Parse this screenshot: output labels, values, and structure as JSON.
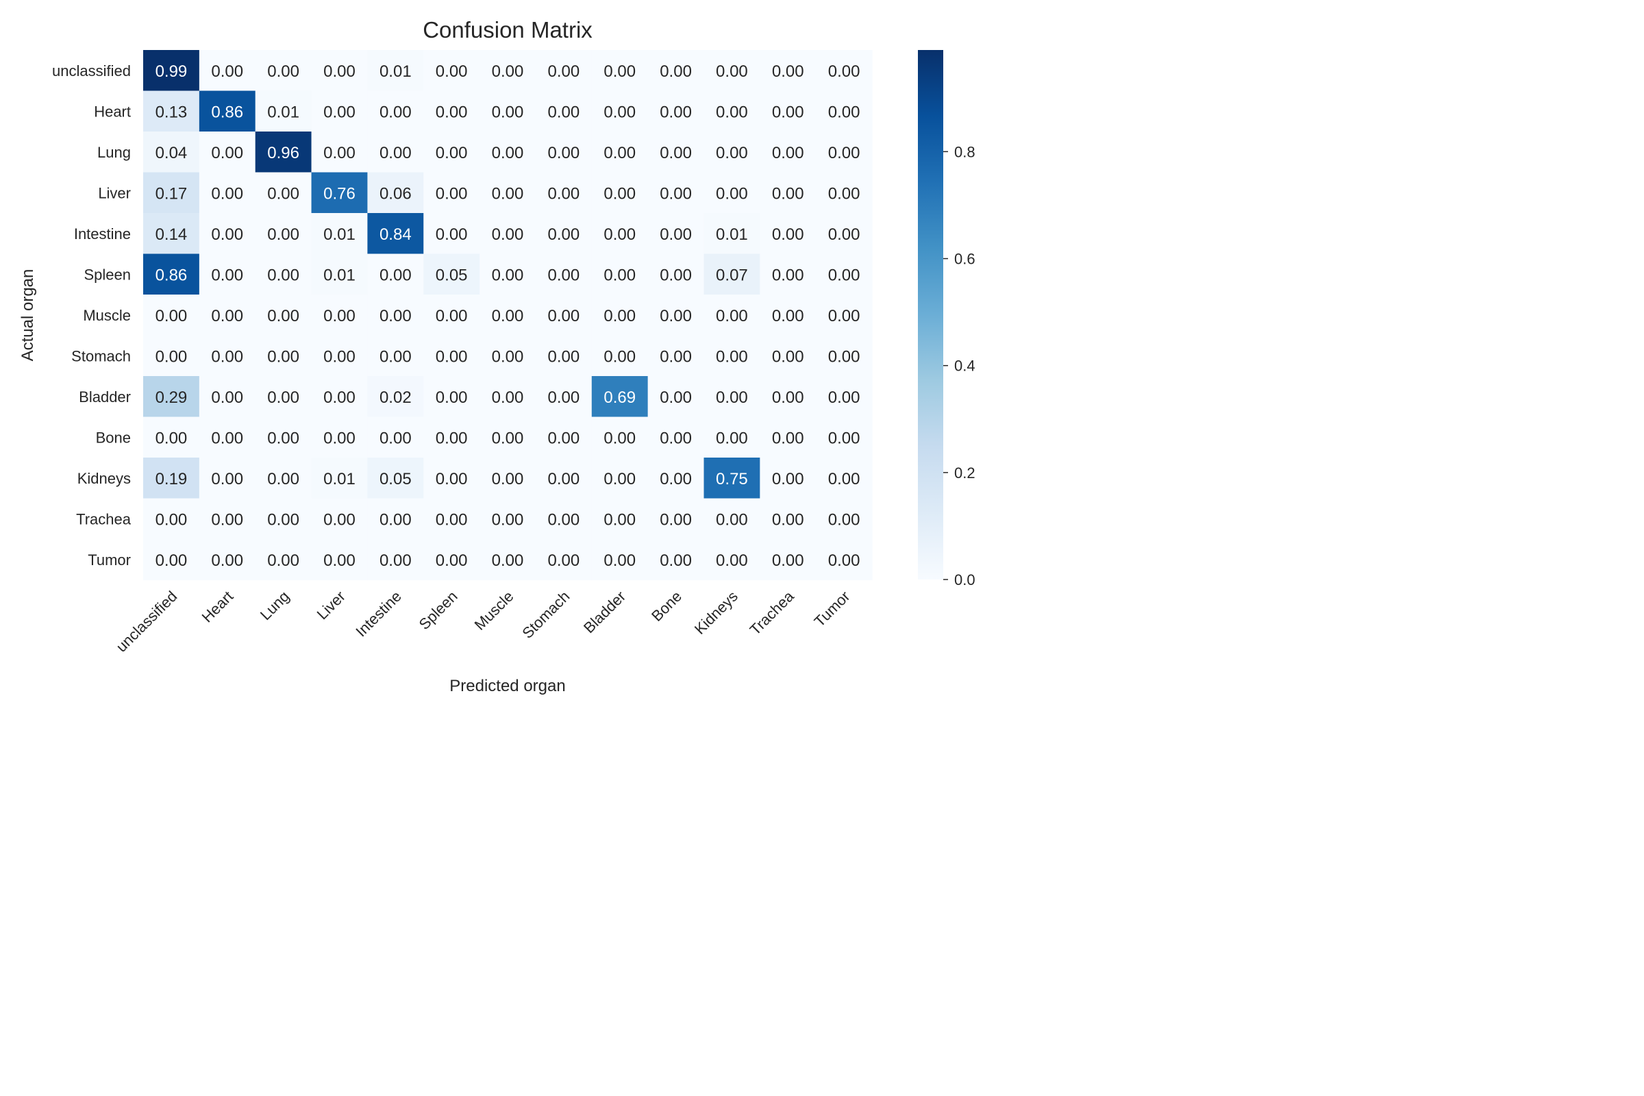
{
  "chart_data": {
    "type": "heatmap",
    "title": "Confusion Matrix",
    "xlabel": "Predicted organ",
    "ylabel": "Actual organ",
    "x_categories": [
      "unclassified",
      "Heart",
      "Lung",
      "Liver",
      "Intestine",
      "Spleen",
      "Muscle",
      "Stomach",
      "Bladder",
      "Bone",
      "Kidneys",
      "Trachea",
      "Tumor"
    ],
    "y_categories": [
      "unclassified",
      "Heart",
      "Lung",
      "Liver",
      "Intestine",
      "Spleen",
      "Muscle",
      "Stomach",
      "Bladder",
      "Bone",
      "Kidneys",
      "Trachea",
      "Tumor"
    ],
    "values": [
      [
        0.99,
        0.0,
        0.0,
        0.0,
        0.01,
        0.0,
        0.0,
        0.0,
        0.0,
        0.0,
        0.0,
        0.0,
        0.0
      ],
      [
        0.13,
        0.86,
        0.01,
        0.0,
        0.0,
        0.0,
        0.0,
        0.0,
        0.0,
        0.0,
        0.0,
        0.0,
        0.0
      ],
      [
        0.04,
        0.0,
        0.96,
        0.0,
        0.0,
        0.0,
        0.0,
        0.0,
        0.0,
        0.0,
        0.0,
        0.0,
        0.0
      ],
      [
        0.17,
        0.0,
        0.0,
        0.76,
        0.06,
        0.0,
        0.0,
        0.0,
        0.0,
        0.0,
        0.0,
        0.0,
        0.0
      ],
      [
        0.14,
        0.0,
        0.0,
        0.01,
        0.84,
        0.0,
        0.0,
        0.0,
        0.0,
        0.0,
        0.01,
        0.0,
        0.0
      ],
      [
        0.86,
        0.0,
        0.0,
        0.01,
        0.0,
        0.05,
        0.0,
        0.0,
        0.0,
        0.0,
        0.07,
        0.0,
        0.0
      ],
      [
        0.0,
        0.0,
        0.0,
        0.0,
        0.0,
        0.0,
        0.0,
        0.0,
        0.0,
        0.0,
        0.0,
        0.0,
        0.0
      ],
      [
        0.0,
        0.0,
        0.0,
        0.0,
        0.0,
        0.0,
        0.0,
        0.0,
        0.0,
        0.0,
        0.0,
        0.0,
        0.0
      ],
      [
        0.29,
        0.0,
        0.0,
        0.0,
        0.02,
        0.0,
        0.0,
        0.0,
        0.69,
        0.0,
        0.0,
        0.0,
        0.0
      ],
      [
        0.0,
        0.0,
        0.0,
        0.0,
        0.0,
        0.0,
        0.0,
        0.0,
        0.0,
        0.0,
        0.0,
        0.0,
        0.0
      ],
      [
        0.19,
        0.0,
        0.0,
        0.01,
        0.05,
        0.0,
        0.0,
        0.0,
        0.0,
        0.0,
        0.75,
        0.0,
        0.0
      ],
      [
        0.0,
        0.0,
        0.0,
        0.0,
        0.0,
        0.0,
        0.0,
        0.0,
        0.0,
        0.0,
        0.0,
        0.0,
        0.0
      ],
      [
        0.0,
        0.0,
        0.0,
        0.0,
        0.0,
        0.0,
        0.0,
        0.0,
        0.0,
        0.0,
        0.0,
        0.0,
        0.0
      ]
    ],
    "colormap": "Blues",
    "color_range": [
      0.0,
      0.99
    ],
    "colorbar_ticks": [
      "0.0",
      "0.2",
      "0.4",
      "0.6",
      "0.8"
    ],
    "grid": false
  }
}
